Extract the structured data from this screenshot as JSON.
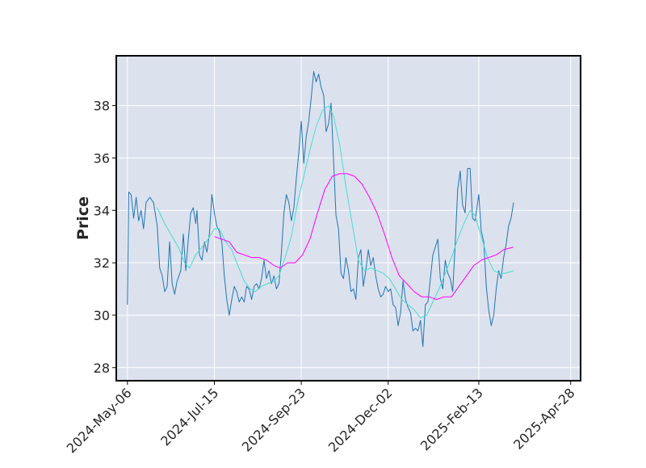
{
  "chart_data": {
    "type": "line",
    "title": "",
    "xlabel": "",
    "ylabel": "Price",
    "ylim": [
      27.5,
      39.9
    ],
    "xlim": [
      "2024-04-27",
      "2025-05-06"
    ],
    "grid": true,
    "legend": null,
    "x_ticks": [
      "2024-May-06",
      "2024-Jul-15",
      "2024-Sep-23",
      "2024-Dec-02",
      "2025-Feb-13",
      "2025-Apr-28"
    ],
    "y_ticks": [
      28,
      30,
      32,
      34,
      36,
      38
    ],
    "colors": {
      "background": "#dce1ee",
      "grid": "#ffffff",
      "price": "#1f77b4",
      "ma_short": "#40e0d0",
      "ma_long": "#ff00ff"
    },
    "series": [
      {
        "key": "price",
        "points": [
          [
            "2024-05-06",
            30.4
          ],
          [
            "2024-05-07",
            34.7
          ],
          [
            "2024-05-09",
            34.6
          ],
          [
            "2024-05-11",
            33.7
          ],
          [
            "2024-05-13",
            34.5
          ],
          [
            "2024-05-15",
            33.6
          ],
          [
            "2024-05-17",
            34.0
          ],
          [
            "2024-05-19",
            33.3
          ],
          [
            "2024-05-21",
            34.3
          ],
          [
            "2024-05-24",
            34.5
          ],
          [
            "2024-05-27",
            34.3
          ],
          [
            "2024-05-30",
            33.4
          ],
          [
            "2024-06-01",
            31.8
          ],
          [
            "2024-06-03",
            31.5
          ],
          [
            "2024-06-05",
            30.9
          ],
          [
            "2024-06-07",
            31.1
          ],
          [
            "2024-06-09",
            32.8
          ],
          [
            "2024-06-11",
            31.2
          ],
          [
            "2024-06-13",
            30.8
          ],
          [
            "2024-06-15",
            31.3
          ],
          [
            "2024-06-18",
            31.7
          ],
          [
            "2024-06-20",
            33.1
          ],
          [
            "2024-06-22",
            31.7
          ],
          [
            "2024-06-24",
            32.9
          ],
          [
            "2024-06-26",
            33.9
          ],
          [
            "2024-06-28",
            34.1
          ],
          [
            "2024-06-30",
            33.5
          ],
          [
            "2024-07-01",
            34.0
          ],
          [
            "2024-07-03",
            32.3
          ],
          [
            "2024-07-05",
            32.1
          ],
          [
            "2024-07-07",
            32.8
          ],
          [
            "2024-07-09",
            32.4
          ],
          [
            "2024-07-11",
            33.1
          ],
          [
            "2024-07-13",
            34.6
          ],
          [
            "2024-07-15",
            33.9
          ],
          [
            "2024-07-17",
            33.4
          ],
          [
            "2024-07-19",
            33.2
          ],
          [
            "2024-07-21",
            32.8
          ],
          [
            "2024-07-23",
            31.5
          ],
          [
            "2024-07-25",
            30.6
          ],
          [
            "2024-07-27",
            30.0
          ],
          [
            "2024-07-29",
            30.6
          ],
          [
            "2024-07-31",
            31.1
          ],
          [
            "2024-08-02",
            30.9
          ],
          [
            "2024-08-04",
            30.5
          ],
          [
            "2024-08-06",
            30.7
          ],
          [
            "2024-08-08",
            30.5
          ],
          [
            "2024-08-10",
            31.1
          ],
          [
            "2024-08-12",
            31.0
          ],
          [
            "2024-08-14",
            30.6
          ],
          [
            "2024-08-16",
            31.1
          ],
          [
            "2024-08-18",
            31.2
          ],
          [
            "2024-08-20",
            31.0
          ],
          [
            "2024-08-22",
            31.4
          ],
          [
            "2024-08-24",
            32.1
          ],
          [
            "2024-08-26",
            31.4
          ],
          [
            "2024-08-28",
            31.7
          ],
          [
            "2024-08-30",
            31.2
          ],
          [
            "2024-09-01",
            31.5
          ],
          [
            "2024-09-03",
            31.0
          ],
          [
            "2024-09-05",
            31.2
          ],
          [
            "2024-09-07",
            32.4
          ],
          [
            "2024-09-09",
            33.9
          ],
          [
            "2024-09-11",
            34.6
          ],
          [
            "2024-09-13",
            34.3
          ],
          [
            "2024-09-15",
            33.6
          ],
          [
            "2024-09-17",
            34.1
          ],
          [
            "2024-09-19",
            35.2
          ],
          [
            "2024-09-21",
            36.2
          ],
          [
            "2024-09-23",
            37.4
          ],
          [
            "2024-09-25",
            35.8
          ],
          [
            "2024-09-27",
            36.8
          ],
          [
            "2024-09-29",
            37.4
          ],
          [
            "2024-10-01",
            38.3
          ],
          [
            "2024-10-03",
            39.3
          ],
          [
            "2024-10-05",
            38.9
          ],
          [
            "2024-10-07",
            39.2
          ],
          [
            "2024-10-09",
            38.7
          ],
          [
            "2024-10-11",
            38.4
          ],
          [
            "2024-10-13",
            37.0
          ],
          [
            "2024-10-15",
            37.3
          ],
          [
            "2024-10-17",
            38.1
          ],
          [
            "2024-10-19",
            35.9
          ],
          [
            "2024-10-21",
            33.8
          ],
          [
            "2024-10-23",
            33.3
          ],
          [
            "2024-10-25",
            31.6
          ],
          [
            "2024-10-27",
            31.4
          ],
          [
            "2024-10-29",
            32.2
          ],
          [
            "2024-10-31",
            31.7
          ],
          [
            "2024-11-02",
            30.9
          ],
          [
            "2024-11-04",
            31.0
          ],
          [
            "2024-11-06",
            30.6
          ],
          [
            "2024-11-08",
            32.2
          ],
          [
            "2024-11-10",
            32.5
          ],
          [
            "2024-11-12",
            31.1
          ],
          [
            "2024-11-14",
            31.7
          ],
          [
            "2024-11-16",
            32.5
          ],
          [
            "2024-11-18",
            31.9
          ],
          [
            "2024-11-20",
            32.2
          ],
          [
            "2024-11-22",
            31.5
          ],
          [
            "2024-11-24",
            31.0
          ],
          [
            "2024-11-26",
            30.7
          ],
          [
            "2024-11-28",
            30.8
          ],
          [
            "2024-11-30",
            31.1
          ],
          [
            "2024-12-02",
            30.9
          ],
          [
            "2024-12-04",
            31.0
          ],
          [
            "2024-12-06",
            30.4
          ],
          [
            "2024-12-08",
            30.3
          ],
          [
            "2024-12-10",
            29.6
          ],
          [
            "2024-12-12",
            30.1
          ],
          [
            "2024-12-14",
            31.3
          ],
          [
            "2024-12-16",
            30.6
          ],
          [
            "2024-12-18",
            30.3
          ],
          [
            "2024-12-20",
            30.1
          ],
          [
            "2024-12-22",
            29.4
          ],
          [
            "2024-12-24",
            29.5
          ],
          [
            "2024-12-26",
            29.4
          ],
          [
            "2024-12-28",
            29.8
          ],
          [
            "2024-12-30",
            28.8
          ],
          [
            "2025-01-01",
            30.4
          ],
          [
            "2025-01-03",
            30.5
          ],
          [
            "2025-01-05",
            31.4
          ],
          [
            "2025-01-07",
            32.3
          ],
          [
            "2025-01-09",
            32.6
          ],
          [
            "2025-01-11",
            32.9
          ],
          [
            "2025-01-13",
            31.4
          ],
          [
            "2025-01-15",
            31.0
          ],
          [
            "2025-01-17",
            32.1
          ],
          [
            "2025-01-19",
            31.6
          ],
          [
            "2025-01-21",
            31.4
          ],
          [
            "2025-01-23",
            30.9
          ],
          [
            "2025-01-25",
            32.7
          ],
          [
            "2025-01-27",
            34.8
          ],
          [
            "2025-01-29",
            35.5
          ],
          [
            "2025-01-31",
            34.2
          ],
          [
            "2025-02-02",
            33.9
          ],
          [
            "2025-02-04",
            35.6
          ],
          [
            "2025-02-06",
            35.6
          ],
          [
            "2025-02-08",
            33.7
          ],
          [
            "2025-02-10",
            33.6
          ],
          [
            "2025-02-13",
            34.6
          ],
          [
            "2025-02-15",
            33.2
          ],
          [
            "2025-02-17",
            32.8
          ],
          [
            "2025-02-19",
            31.1
          ],
          [
            "2025-02-21",
            30.2
          ],
          [
            "2025-02-23",
            29.6
          ],
          [
            "2025-02-25",
            30.0
          ],
          [
            "2025-02-27",
            31.0
          ],
          [
            "2025-03-01",
            31.7
          ],
          [
            "2025-03-03",
            31.4
          ],
          [
            "2025-03-05",
            32.2
          ],
          [
            "2025-03-07",
            32.7
          ],
          [
            "2025-03-09",
            33.4
          ],
          [
            "2025-03-11",
            33.7
          ],
          [
            "2025-03-13",
            34.3
          ]
        ]
      },
      {
        "key": "ma_short",
        "points": [
          [
            "2024-05-30",
            34.1
          ],
          [
            "2024-06-05",
            33.5
          ],
          [
            "2024-06-11",
            33.0
          ],
          [
            "2024-06-16",
            32.6
          ],
          [
            "2024-06-21",
            32.0
          ],
          [
            "2024-06-25",
            31.8
          ],
          [
            "2024-06-30",
            32.3
          ],
          [
            "2024-07-05",
            32.6
          ],
          [
            "2024-07-10",
            32.9
          ],
          [
            "2024-07-15",
            33.3
          ],
          [
            "2024-07-19",
            33.3
          ],
          [
            "2024-07-24",
            32.8
          ],
          [
            "2024-07-29",
            32.5
          ],
          [
            "2024-08-03",
            31.9
          ],
          [
            "2024-08-08",
            31.3
          ],
          [
            "2024-08-13",
            31.0
          ],
          [
            "2024-08-17",
            30.9
          ],
          [
            "2024-08-22",
            31.1
          ],
          [
            "2024-08-27",
            31.2
          ],
          [
            "2024-09-01",
            31.3
          ],
          [
            "2024-09-05",
            31.5
          ],
          [
            "2024-09-10",
            32.2
          ],
          [
            "2024-09-15",
            33.0
          ],
          [
            "2024-09-20",
            34.3
          ],
          [
            "2024-09-25",
            35.3
          ],
          [
            "2024-09-30",
            36.3
          ],
          [
            "2024-10-05",
            37.2
          ],
          [
            "2024-10-10",
            37.8
          ],
          [
            "2024-10-15",
            38.0
          ],
          [
            "2024-10-19",
            37.6
          ],
          [
            "2024-10-24",
            36.5
          ],
          [
            "2024-10-29",
            34.9
          ],
          [
            "2024-11-03",
            33.5
          ],
          [
            "2024-11-08",
            32.1
          ],
          [
            "2024-11-13",
            31.7
          ],
          [
            "2024-11-18",
            31.8
          ],
          [
            "2024-11-23",
            31.7
          ],
          [
            "2024-11-28",
            31.6
          ],
          [
            "2024-12-03",
            31.4
          ],
          [
            "2024-12-08",
            31.0
          ],
          [
            "2024-12-13",
            30.6
          ],
          [
            "2024-12-18",
            30.4
          ],
          [
            "2024-12-23",
            30.2
          ],
          [
            "2024-12-28",
            29.9
          ],
          [
            "2025-01-02",
            30.0
          ],
          [
            "2025-01-07",
            30.5
          ],
          [
            "2025-01-12",
            31.0
          ],
          [
            "2025-01-17",
            31.6
          ],
          [
            "2025-01-22",
            32.2
          ],
          [
            "2025-01-27",
            32.9
          ],
          [
            "2025-02-01",
            33.5
          ],
          [
            "2025-02-06",
            34.0
          ],
          [
            "2025-02-10",
            33.8
          ],
          [
            "2025-02-15",
            33.0
          ],
          [
            "2025-02-20",
            32.2
          ],
          [
            "2025-02-25",
            31.7
          ],
          [
            "2025-03-02",
            31.6
          ],
          [
            "2025-03-06",
            31.6
          ],
          [
            "2025-03-13",
            31.7
          ]
        ]
      },
      {
        "key": "ma_long",
        "points": [
          [
            "2024-07-15",
            33.0
          ],
          [
            "2024-07-21",
            32.9
          ],
          [
            "2024-07-27",
            32.8
          ],
          [
            "2024-08-02",
            32.4
          ],
          [
            "2024-08-08",
            32.3
          ],
          [
            "2024-08-14",
            32.2
          ],
          [
            "2024-08-20",
            32.2
          ],
          [
            "2024-08-26",
            32.1
          ],
          [
            "2024-09-01",
            31.9
          ],
          [
            "2024-09-06",
            31.8
          ],
          [
            "2024-09-12",
            32.0
          ],
          [
            "2024-09-18",
            32.0
          ],
          [
            "2024-09-24",
            32.3
          ],
          [
            "2024-09-30",
            32.9
          ],
          [
            "2024-10-06",
            33.9
          ],
          [
            "2024-10-12",
            34.8
          ],
          [
            "2024-10-18",
            35.3
          ],
          [
            "2024-10-24",
            35.4
          ],
          [
            "2024-10-30",
            35.4
          ],
          [
            "2024-11-05",
            35.3
          ],
          [
            "2024-11-11",
            35.0
          ],
          [
            "2024-11-17",
            34.5
          ],
          [
            "2024-11-23",
            33.9
          ],
          [
            "2024-11-29",
            33.1
          ],
          [
            "2024-12-05",
            32.2
          ],
          [
            "2024-12-11",
            31.5
          ],
          [
            "2024-12-17",
            31.2
          ],
          [
            "2024-12-23",
            30.9
          ],
          [
            "2024-12-29",
            30.7
          ],
          [
            "2025-01-04",
            30.7
          ],
          [
            "2025-01-10",
            30.6
          ],
          [
            "2025-01-16",
            30.7
          ],
          [
            "2025-01-22",
            30.7
          ],
          [
            "2025-01-28",
            31.1
          ],
          [
            "2025-02-03",
            31.5
          ],
          [
            "2025-02-09",
            31.9
          ],
          [
            "2025-02-15",
            32.1
          ],
          [
            "2025-02-21",
            32.2
          ],
          [
            "2025-02-27",
            32.3
          ],
          [
            "2025-03-05",
            32.5
          ],
          [
            "2025-03-13",
            32.6
          ]
        ]
      }
    ]
  }
}
